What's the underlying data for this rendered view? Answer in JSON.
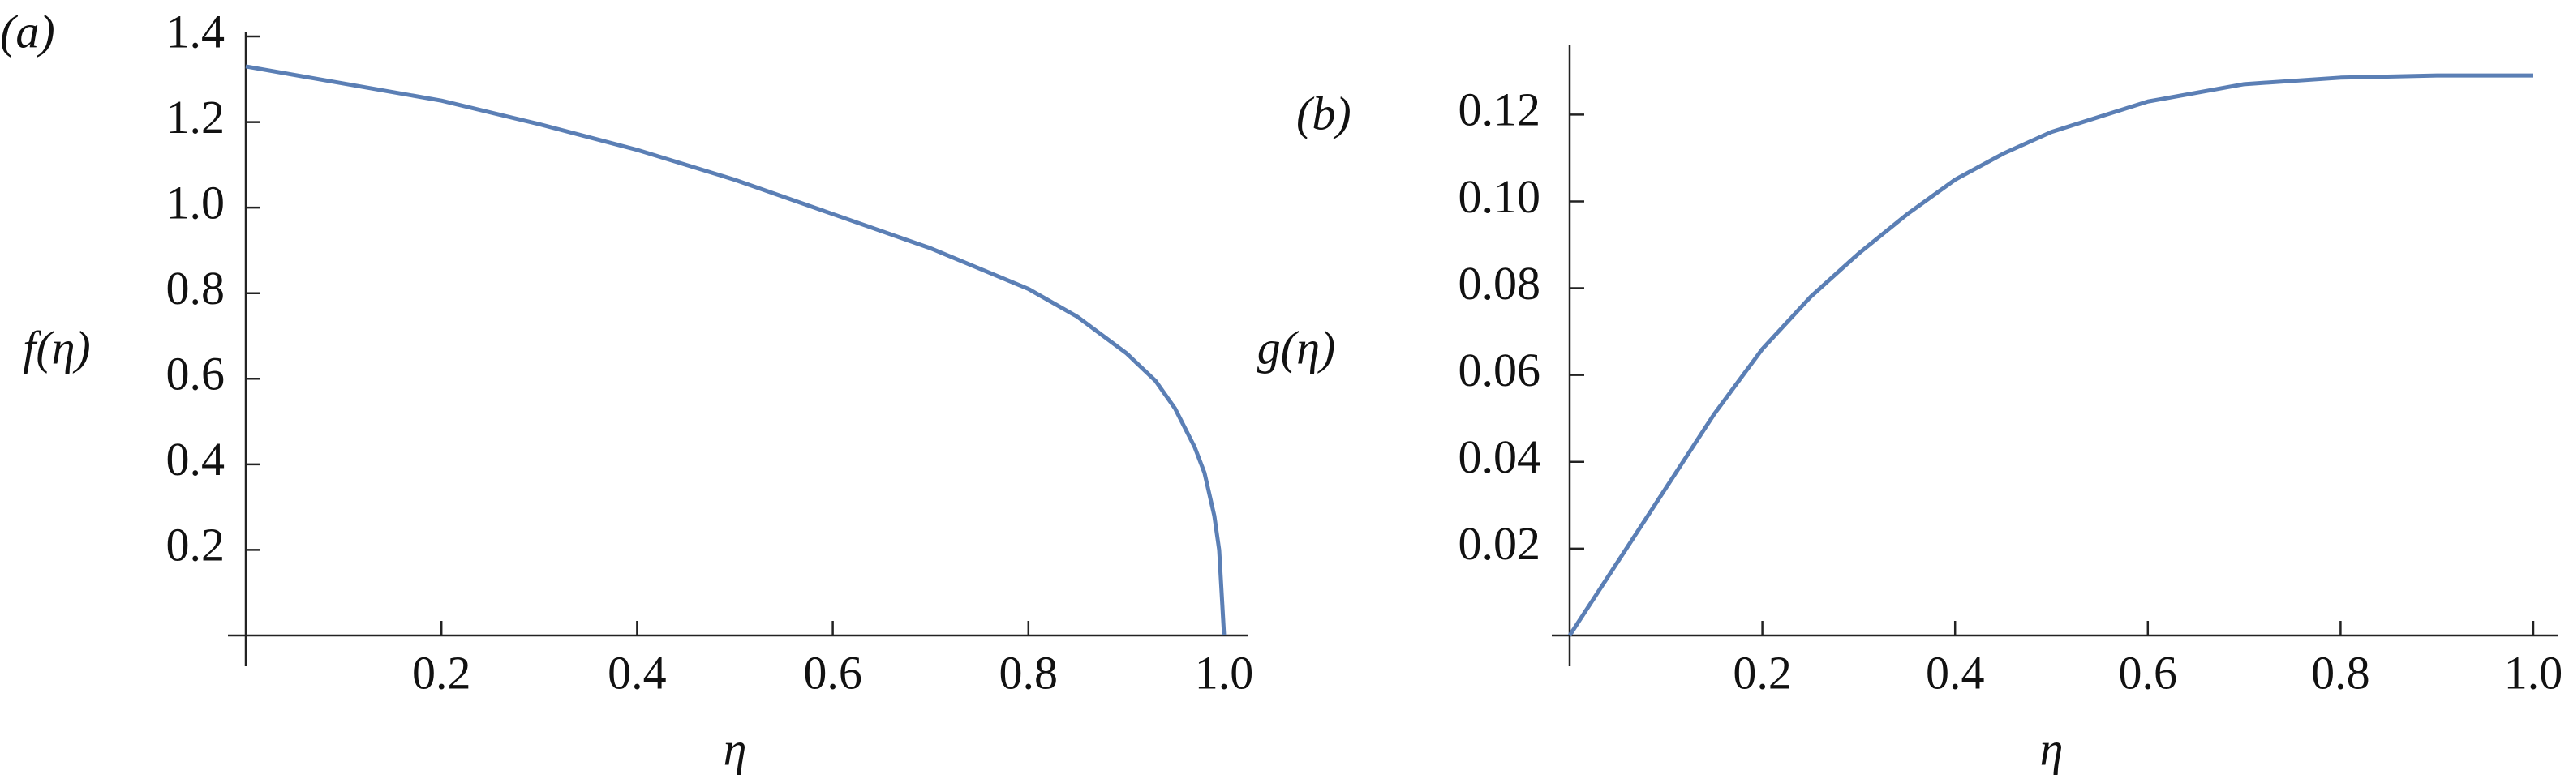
{
  "chart_data": [
    {
      "type": "line",
      "panel_label": "(a)",
      "ylabel": "f(η)",
      "xlabel": "η",
      "x": [
        0,
        0.1,
        0.2,
        0.3,
        0.4,
        0.5,
        0.6,
        0.7,
        0.8,
        0.85,
        0.9,
        0.93,
        0.95,
        0.97,
        0.98,
        0.99,
        0.995,
        1.0
      ],
      "series": [
        {
          "name": "f",
          "color": "#5b7fb5",
          "values": [
            1.33,
            1.29,
            1.25,
            1.195,
            1.135,
            1.065,
            0.985,
            0.905,
            0.81,
            0.745,
            0.66,
            0.595,
            0.53,
            0.44,
            0.38,
            0.28,
            0.2,
            0
          ]
        }
      ],
      "xlim": [
        0,
        1
      ],
      "ylim": [
        0,
        1.4
      ],
      "xticks": [
        0.2,
        0.4,
        0.6,
        0.8,
        {
          "value": 1,
          "label": "1.0"
        }
      ],
      "yticks": [
        0.2,
        0.4,
        0.6,
        0.8,
        {
          "value": 1,
          "label": "1.0"
        },
        1.2,
        1.4
      ]
    },
    {
      "type": "line",
      "panel_label": "(b)",
      "ylabel": "g(η)",
      "xlabel": "η",
      "x": [
        0,
        0.05,
        0.1,
        0.15,
        0.2,
        0.25,
        0.3,
        0.35,
        0.4,
        0.45,
        0.5,
        0.6,
        0.7,
        0.8,
        0.9,
        1.0
      ],
      "series": [
        {
          "name": "g",
          "color": "#5b7fb5",
          "values": [
            0,
            0.017,
            0.034,
            0.051,
            0.066,
            0.078,
            0.088,
            0.097,
            0.105,
            0.111,
            0.116,
            0.123,
            0.127,
            0.1285,
            0.129,
            0.129
          ]
        }
      ],
      "xlim": [
        0,
        1
      ],
      "ylim": [
        0,
        0.135
      ],
      "xticks": [
        0.2,
        0.4,
        0.6,
        0.8,
        {
          "value": 1,
          "label": "1.0"
        }
      ],
      "yticks": [
        0.02,
        0.04,
        0.06,
        0.08,
        {
          "value": 0.1,
          "label": "0.10"
        },
        0.12
      ]
    }
  ]
}
